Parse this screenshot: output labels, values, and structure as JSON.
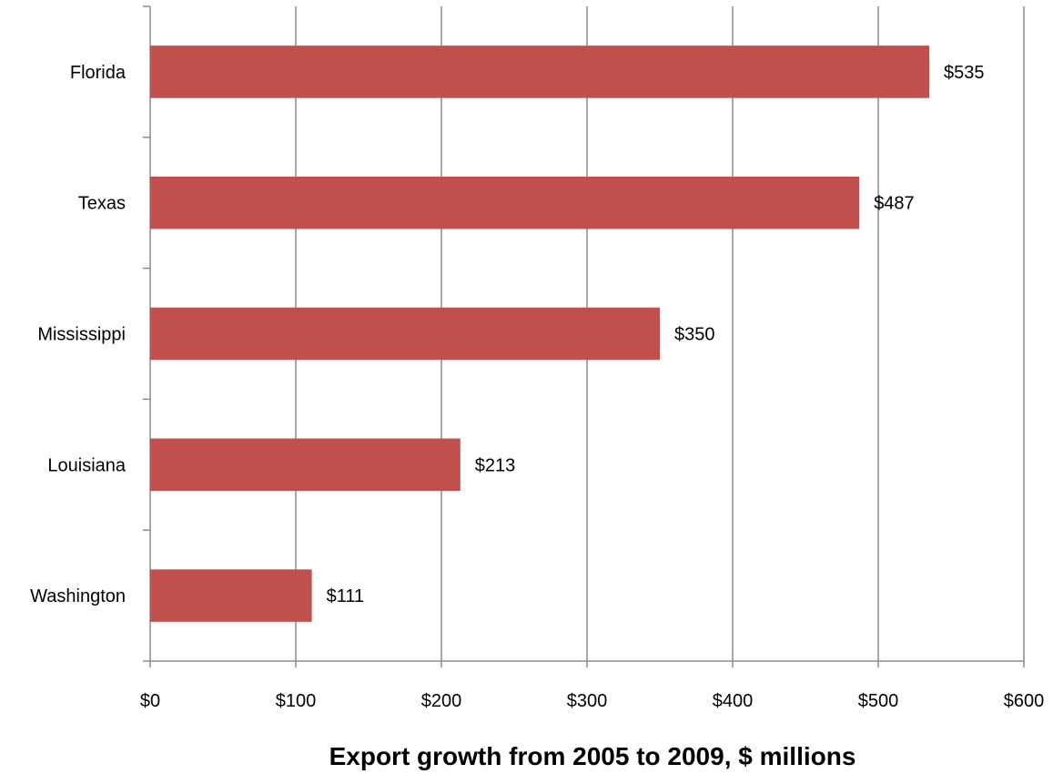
{
  "chart_data": {
    "type": "bar",
    "orientation": "horizontal",
    "categories": [
      "Florida",
      "Texas",
      "Mississippi",
      "Louisiana",
      "Washington"
    ],
    "values": [
      535,
      487,
      350,
      213,
      111
    ],
    "data_labels": [
      "$535",
      "$487",
      "$350",
      "$213",
      "$111"
    ],
    "xlabel": "Export growth from 2005 to 2009, $ millions",
    "ylabel": "",
    "xlim": [
      0,
      600
    ],
    "x_ticks": [
      0,
      100,
      200,
      300,
      400,
      500,
      600
    ],
    "x_tick_labels": [
      "$0",
      "$100",
      "$200",
      "$300",
      "$400",
      "$500",
      "$600"
    ],
    "grid": true,
    "legend": "none",
    "bar_color": "#C0504D",
    "grid_color": "#8c8c8c"
  }
}
